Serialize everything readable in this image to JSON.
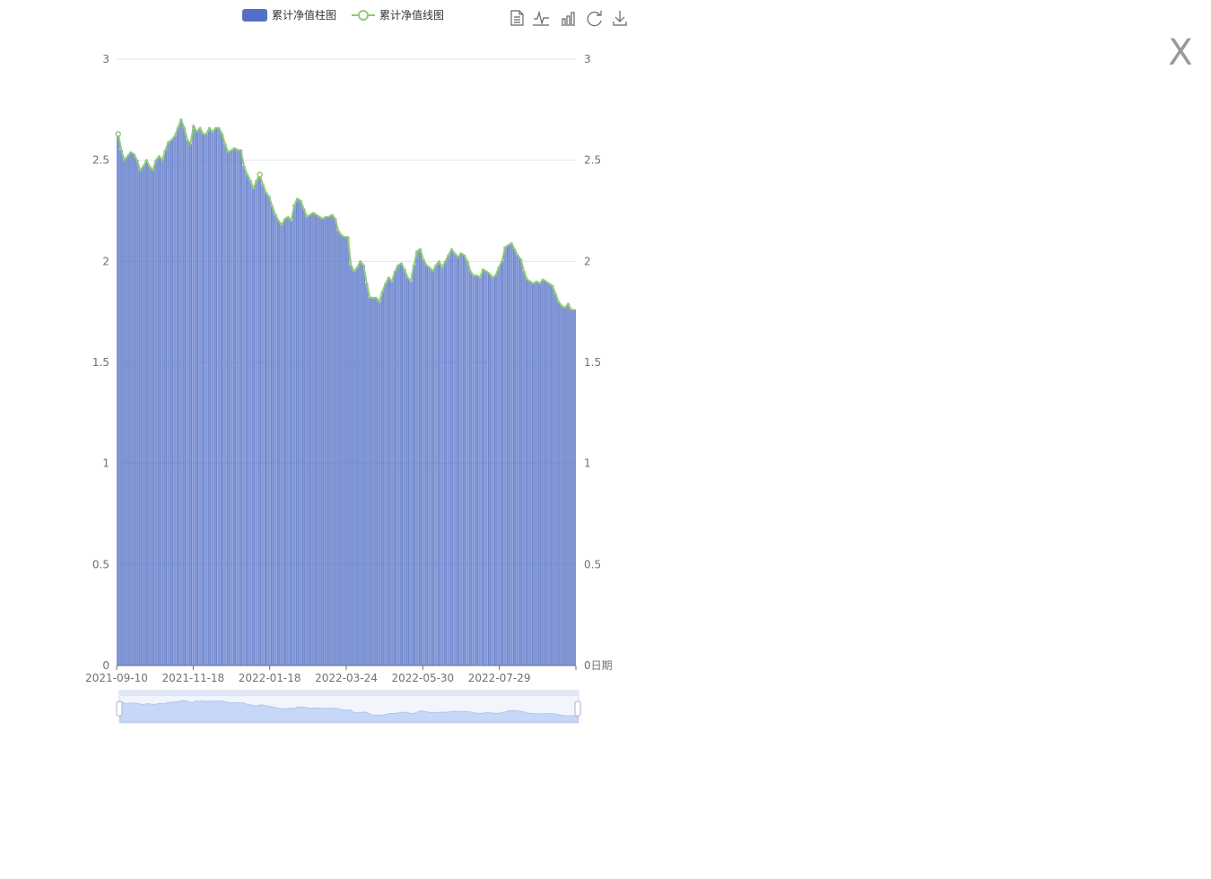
{
  "close_label": "X",
  "legend": {
    "bar_label": "累计净值柱图",
    "line_label": "累计净值线图"
  },
  "toolbox": [
    "data-view-icon",
    "line-chart-icon",
    "bar-chart-icon",
    "restore-icon",
    "download-icon"
  ],
  "colors": {
    "bar": "#5470c6",
    "line": "#91cc75",
    "grid": "#e0e6f1",
    "axis": "#6e7079",
    "zoom_fill": "#d6e2fb",
    "zoom_border": "#d2dbee"
  },
  "chart_data": {
    "type": "bar",
    "x_start": "2021-09-10",
    "x_end": "2022-09-30",
    "x_tick_labels": [
      "2021-09-10",
      "2021-11-18",
      "2022-01-18",
      "2022-03-24",
      "2022-05-30",
      "2022-07-29"
    ],
    "xlabel": "日期",
    "ylim": [
      0,
      3
    ],
    "y_ticks": [
      "0",
      "0.5",
      "1",
      "1.5",
      "2",
      "2.5",
      "3"
    ],
    "grid": true,
    "legend_position": "top",
    "series": [
      {
        "name": "累计净值柱图",
        "type": "bar",
        "values": [
          2.63,
          2.55,
          2.5,
          2.52,
          2.54,
          2.53,
          2.5,
          2.45,
          2.47,
          2.5,
          2.47,
          2.45,
          2.5,
          2.52,
          2.5,
          2.55,
          2.59,
          2.6,
          2.62,
          2.66,
          2.7,
          2.66,
          2.6,
          2.58,
          2.67,
          2.64,
          2.66,
          2.63,
          2.63,
          2.66,
          2.64,
          2.66,
          2.66,
          2.63,
          2.58,
          2.54,
          2.55,
          2.56,
          2.55,
          2.55,
          2.47,
          2.43,
          2.4,
          2.36,
          2.4,
          2.43,
          2.38,
          2.34,
          2.32,
          2.27,
          2.23,
          2.2,
          2.18,
          2.21,
          2.22,
          2.2,
          2.28,
          2.31,
          2.3,
          2.26,
          2.22,
          2.23,
          2.24,
          2.23,
          2.22,
          2.21,
          2.22,
          2.22,
          2.23,
          2.21,
          2.15,
          2.13,
          2.12,
          2.12,
          1.98,
          1.95,
          1.97,
          2.0,
          1.98,
          1.89,
          1.82,
          1.82,
          1.82,
          1.8,
          1.85,
          1.89,
          1.92,
          1.9,
          1.95,
          1.98,
          1.99,
          1.96,
          1.92,
          1.9,
          1.98,
          2.05,
          2.06,
          2.01,
          1.98,
          1.97,
          1.95,
          1.98,
          2.0,
          1.97,
          2.0,
          2.03,
          2.06,
          2.04,
          2.02,
          2.04,
          2.03,
          2.0,
          1.95,
          1.93,
          1.93,
          1.92,
          1.96,
          1.95,
          1.94,
          1.92,
          1.93,
          1.97,
          2.0,
          2.07,
          2.08,
          2.09,
          2.06,
          2.03,
          2.01,
          1.95,
          1.91,
          1.9,
          1.89,
          1.9,
          1.89,
          1.91,
          1.9,
          1.89,
          1.88,
          1.84,
          1.8,
          1.78,
          1.77,
          1.79,
          1.76,
          1.76
        ]
      },
      {
        "name": "累计净值线图",
        "type": "line",
        "values": [
          2.63,
          2.55,
          2.5,
          2.52,
          2.54,
          2.53,
          2.5,
          2.45,
          2.47,
          2.5,
          2.47,
          2.45,
          2.5,
          2.52,
          2.5,
          2.55,
          2.59,
          2.6,
          2.62,
          2.66,
          2.7,
          2.66,
          2.6,
          2.58,
          2.67,
          2.64,
          2.66,
          2.63,
          2.63,
          2.66,
          2.64,
          2.66,
          2.66,
          2.63,
          2.58,
          2.54,
          2.55,
          2.56,
          2.55,
          2.55,
          2.47,
          2.43,
          2.4,
          2.36,
          2.4,
          2.43,
          2.38,
          2.34,
          2.32,
          2.27,
          2.23,
          2.2,
          2.18,
          2.21,
          2.22,
          2.2,
          2.28,
          2.31,
          2.3,
          2.26,
          2.22,
          2.23,
          2.24,
          2.23,
          2.22,
          2.21,
          2.22,
          2.22,
          2.23,
          2.21,
          2.15,
          2.13,
          2.12,
          2.12,
          1.98,
          1.95,
          1.97,
          2.0,
          1.98,
          1.89,
          1.82,
          1.82,
          1.82,
          1.8,
          1.85,
          1.89,
          1.92,
          1.9,
          1.95,
          1.98,
          1.99,
          1.96,
          1.92,
          1.9,
          1.98,
          2.05,
          2.06,
          2.01,
          1.98,
          1.97,
          1.95,
          1.98,
          2.0,
          1.97,
          2.0,
          2.03,
          2.06,
          2.04,
          2.02,
          2.04,
          2.03,
          2.0,
          1.95,
          1.93,
          1.93,
          1.92,
          1.96,
          1.95,
          1.94,
          1.92,
          1.93,
          1.97,
          2.0,
          2.07,
          2.08,
          2.09,
          2.06,
          2.03,
          2.01,
          1.95,
          1.91,
          1.9,
          1.89,
          1.9,
          1.89,
          1.91,
          1.9,
          1.89,
          1.88,
          1.84,
          1.8,
          1.78,
          1.77,
          1.79,
          1.76,
          1.76
        ]
      }
    ]
  }
}
